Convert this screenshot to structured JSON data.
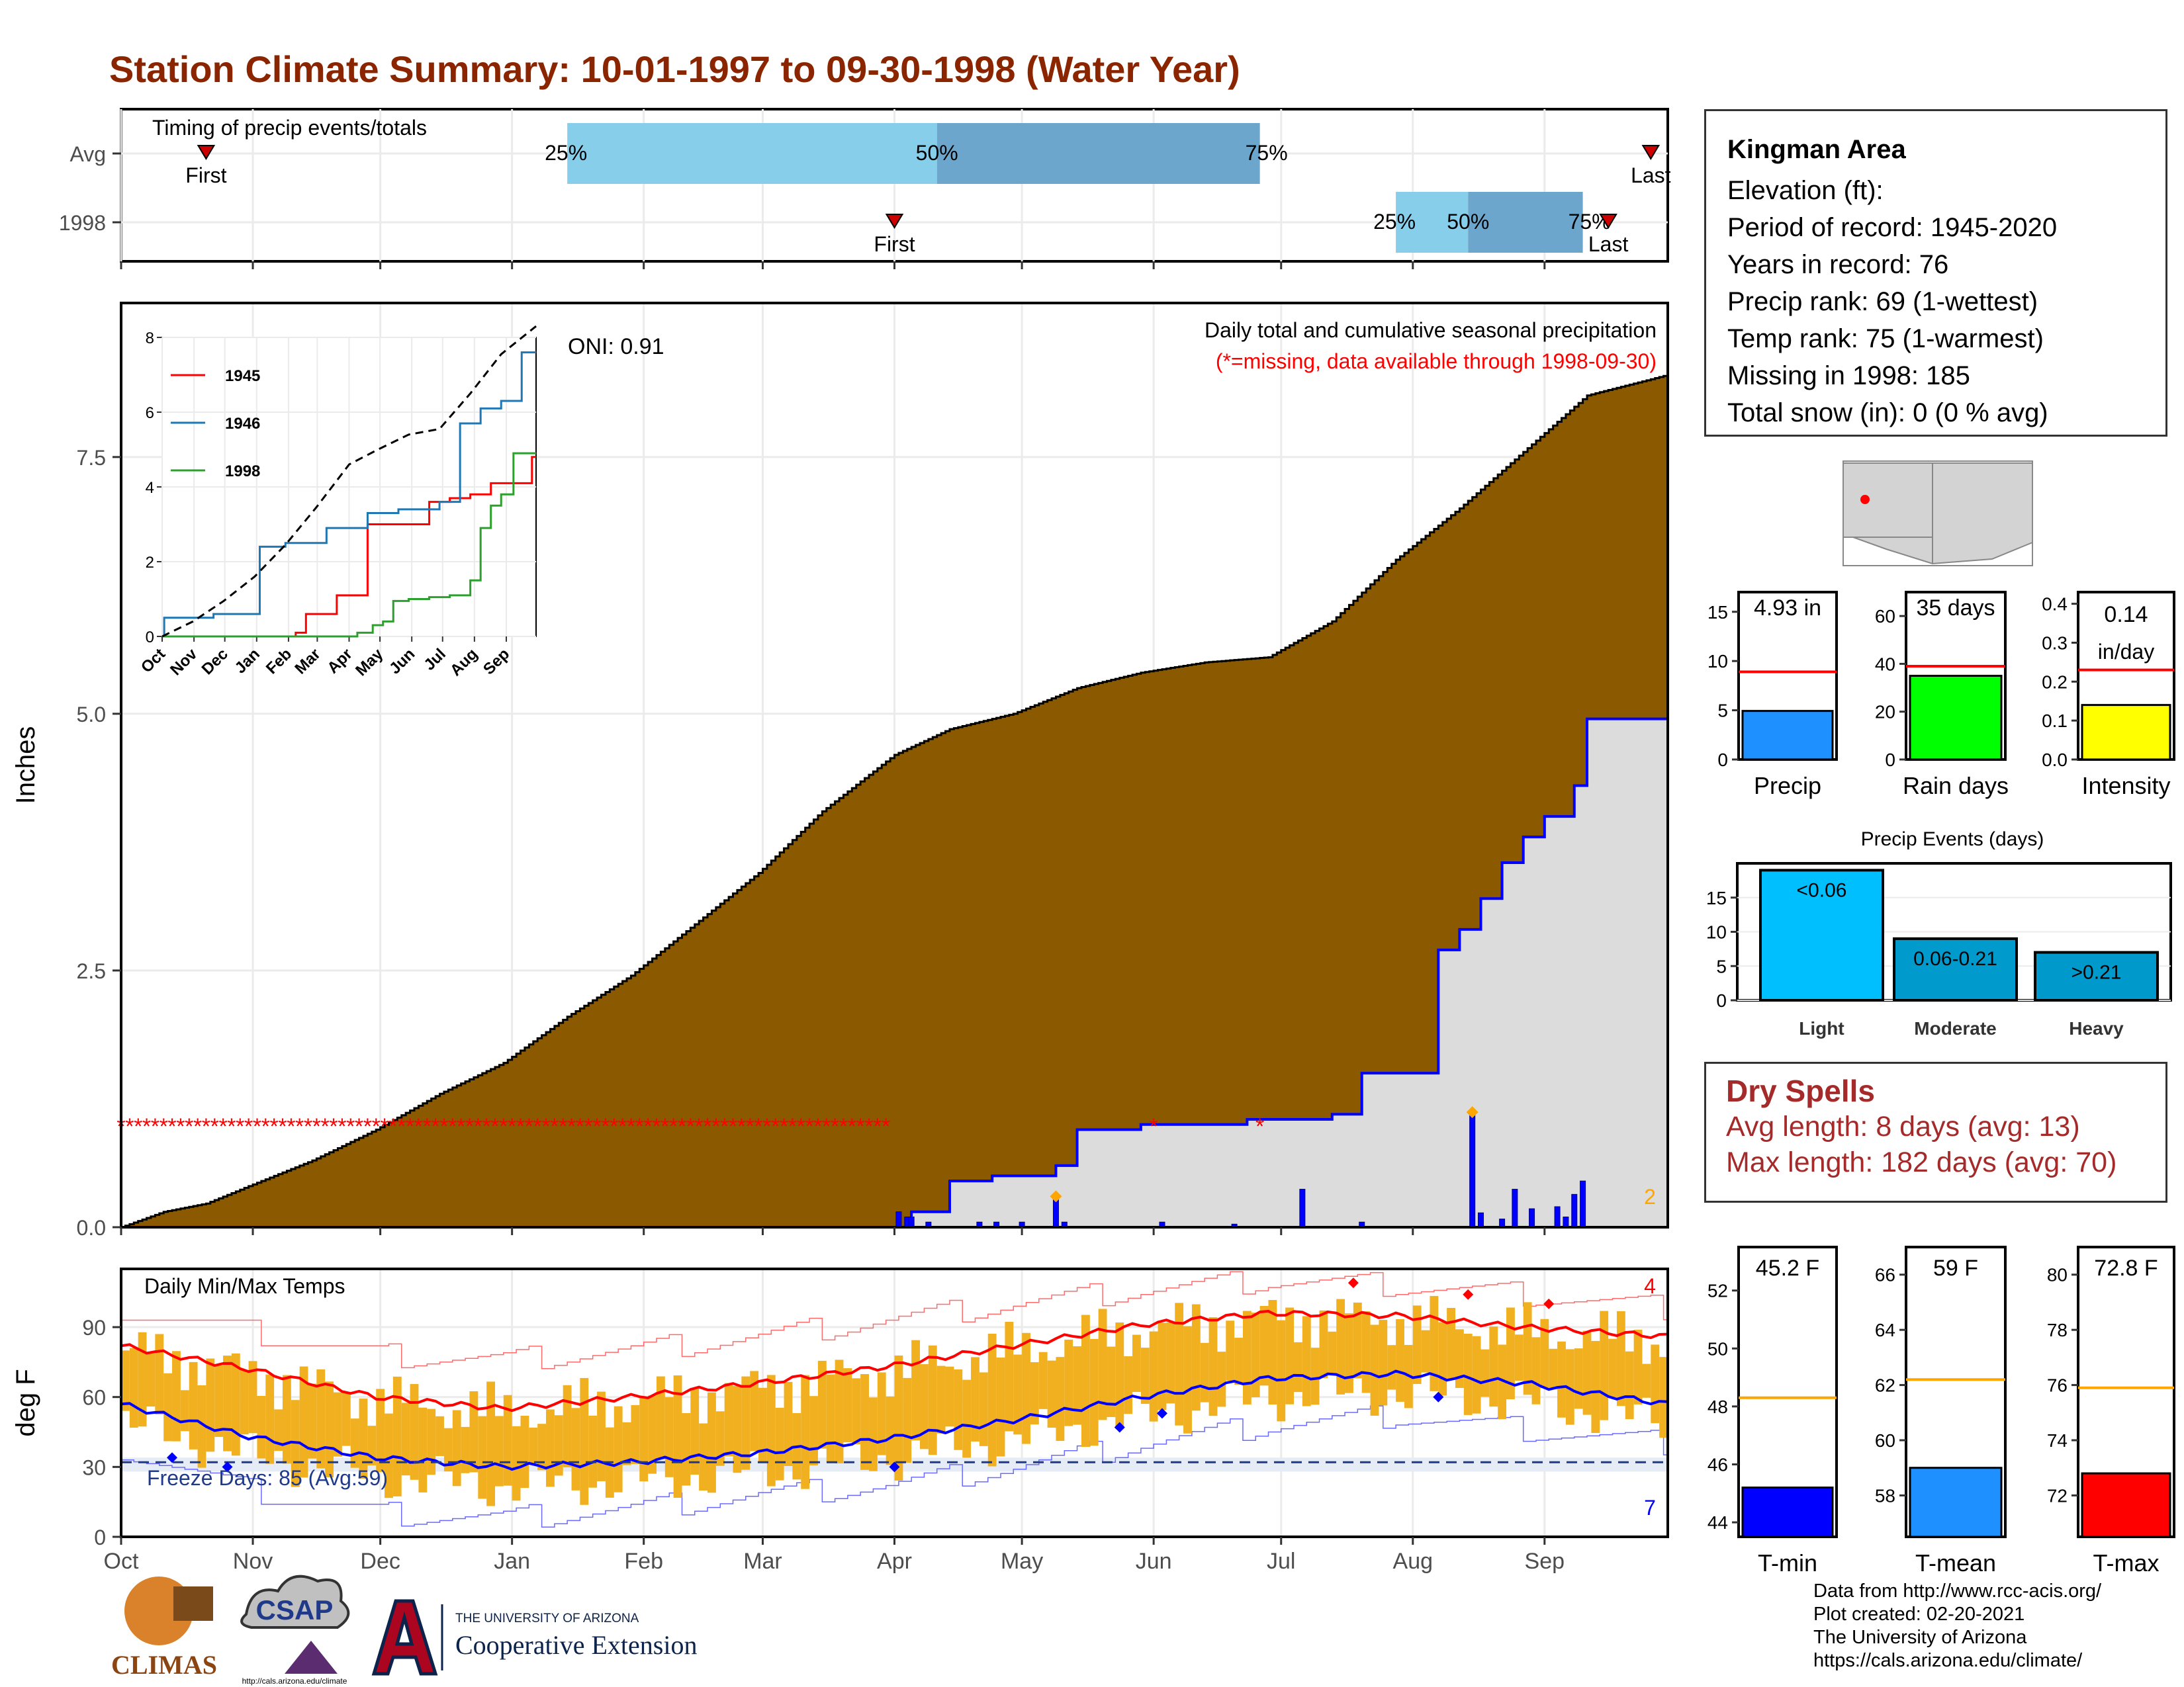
{
  "page": {
    "title": "Station Climate Summary: 10-01-1997 to 09-30-1998 (Water Year)"
  },
  "station": {
    "name": "Kingman Area",
    "lines": [
      "Elevation (ft):",
      "Period of record: 1945-2020",
      "Years in record: 76",
      "Precip rank: 69 (1-wettest)",
      "Temp rank: 75 (1-warmest)",
      "Missing in 1998: 185",
      "Total snow (in): 0 (0 % avg)"
    ]
  },
  "dry_spells": {
    "heading": "Dry Spells",
    "avg": "Avg length: 8 days (avg: 13)",
    "max": "Max length: 182 days (avg: 70)"
  },
  "footer": {
    "lines": [
      "Data from http://www.rcc-acis.org/",
      "Plot created: 02-20-2021",
      "The University of Arizona",
      "https://cals.arizona.edu/climate/"
    ]
  },
  "logos": {
    "climas": "CLIMAS",
    "csap": "CSAP",
    "csap_url": "http://cals.arizona.edu/climate",
    "ua_top": "THE UNIVERSITY OF ARIZONA",
    "ua_bottom": "Cooperative Extension"
  },
  "colors": {
    "title": "#8b2500",
    "cumulative_avg": "#8b5a00",
    "cumulative_1998": "#0000ff",
    "missing": "#ff0000",
    "temp_bars": "#f0b020",
    "tmin": "#0000ff",
    "tmax": "#ff0000",
    "precip_bar": "#1e90ff",
    "raindays_bar": "#00ff00",
    "intensity_bar": "#ffff00",
    "events_light": "#00bfff",
    "events_moderate": "#009acd",
    "events_heavy": "#0099cc",
    "tmean_bar": "#1e90ff"
  },
  "chart_data": [
    {
      "id": "timing",
      "type": "timeline",
      "label": "Timing of precip events/totals",
      "x_months": [
        "Oct",
        "Nov",
        "Dec",
        "Jan",
        "Feb",
        "Mar",
        "Apr",
        "May",
        "Jun",
        "Jul",
        "Aug",
        "Sep"
      ],
      "rows": [
        {
          "name": "Avg",
          "first_day": 20,
          "last_day": 360,
          "p25": 105,
          "p50": 192,
          "p75": 268,
          "labels": {
            "first": "First",
            "last": "Last",
            "p25": "25%",
            "p50": "50%",
            "p75": "75%"
          }
        },
        {
          "name": "1998",
          "first_day": 182,
          "last_day": 350,
          "p25": 300,
          "p50": 317,
          "p75": 344,
          "labels": {
            "first": "First",
            "last": "Last",
            "p25": "25%",
            "p50": "50%",
            "p75": "75%"
          }
        }
      ]
    },
    {
      "id": "cumulative",
      "type": "area",
      "annotation_oni": "ONI: 0.91",
      "annotation_title": "Daily total and cumulative seasonal precipitation",
      "annotation_missing": "(*=missing, data available through 1998-09-30)",
      "ylabel": "Inches",
      "ylim": [
        0,
        9.0
      ],
      "yticks": [
        0.0,
        2.5,
        5.0,
        7.5
      ],
      "ytick_labels": [
        "0.0",
        "2.5",
        "5.0",
        "7.5"
      ],
      "x_months": [
        "Oct",
        "Nov",
        "Dec",
        "Jan",
        "Feb",
        "Mar",
        "Apr",
        "May",
        "Jun",
        "Jul",
        "Aug",
        "Sep"
      ],
      "avg_cumulative": {
        "days": [
          0,
          10,
          20,
          30,
          45,
          60,
          75,
          90,
          105,
          120,
          135,
          150,
          165,
          182,
          195,
          210,
          225,
          240,
          255,
          270,
          285,
          300,
          315,
          330,
          345,
          364
        ],
        "values": [
          0.0,
          0.15,
          0.23,
          0.4,
          0.65,
          0.95,
          1.3,
          1.6,
          2.05,
          2.45,
          2.95,
          3.45,
          4.05,
          4.6,
          4.85,
          5.0,
          5.25,
          5.4,
          5.5,
          5.55,
          5.9,
          6.5,
          7.0,
          7.55,
          8.1,
          8.3
        ]
      },
      "cumulative_1998": {
        "days": [
          182,
          186,
          195,
          205,
          220,
          225,
          240,
          250,
          265,
          270,
          285,
          292,
          300,
          310,
          315,
          320,
          325,
          330,
          335,
          342,
          345,
          364
        ],
        "values": [
          0.0,
          0.15,
          0.45,
          0.5,
          0.6,
          0.95,
          1.0,
          1.0,
          1.05,
          1.05,
          1.1,
          1.5,
          1.5,
          2.7,
          2.9,
          3.2,
          3.55,
          3.8,
          4.0,
          4.3,
          4.95,
          4.95
        ]
      },
      "daily_1998": {
        "days": [
          183,
          185,
          186,
          190,
          202,
          206,
          212,
          220,
          222,
          245,
          262,
          278,
          292,
          318,
          320,
          325,
          328,
          332,
          338,
          340,
          342,
          344
        ],
        "values": [
          0.15,
          0.1,
          0.1,
          0.05,
          0.05,
          0.05,
          0.05,
          0.3,
          0.05,
          0.05,
          0.03,
          0.37,
          0.05,
          1.1,
          0.14,
          0.08,
          0.37,
          0.18,
          0.2,
          0.1,
          0.32,
          0.45
        ]
      },
      "missing_days": {
        "from": 0,
        "to": 181,
        "y": 1.0
      },
      "corner_label": "2",
      "inset": {
        "ylim": [
          0,
          8
        ],
        "yticks": [
          0,
          2,
          4,
          6,
          8
        ],
        "x_months": [
          "Oct",
          "Nov",
          "Dec",
          "Jan",
          "Feb",
          "Mar",
          "Apr",
          "May",
          "Jun",
          "Jul",
          "Aug",
          "Sep"
        ],
        "series": [
          {
            "name": "1945",
            "days": [
              0,
              30,
              60,
              90,
              110,
              130,
              140,
              170,
              200,
              260,
              280,
              300,
              320,
              360,
              364
            ],
            "values": [
              0.0,
              0.0,
              0.0,
              0.0,
              0.0,
              0.1,
              0.6,
              1.1,
              3.0,
              3.6,
              3.7,
              3.8,
              4.1,
              4.8,
              4.8
            ]
          },
          {
            "name": "1946",
            "days": [
              0,
              2,
              10,
              30,
              50,
              90,
              95,
              120,
              160,
              200,
              230,
              250,
              270,
              290,
              310,
              330,
              350,
              364
            ],
            "values": [
              0.0,
              0.5,
              0.5,
              0.5,
              0.6,
              0.6,
              2.4,
              2.5,
              2.9,
              3.3,
              3.4,
              3.4,
              3.6,
              5.7,
              6.1,
              6.3,
              7.6,
              7.6
            ]
          },
          {
            "name": "1998",
            "days": [
              0,
              182,
              190,
              205,
              215,
              225,
              240,
              260,
              280,
              300,
              310,
              320,
              330,
              342,
              364
            ],
            "values": [
              0.0,
              0.0,
              0.1,
              0.3,
              0.4,
              0.95,
              1.0,
              1.05,
              1.1,
              1.5,
              2.9,
              3.5,
              3.8,
              4.9,
              4.9
            ]
          }
        ],
        "avg": {
          "days": [
            0,
            30,
            60,
            90,
            120,
            150,
            182,
            210,
            240,
            270,
            300,
            330,
            364
          ],
          "values": [
            0.0,
            0.4,
            0.95,
            1.6,
            2.45,
            3.45,
            4.6,
            5.0,
            5.4,
            5.55,
            6.5,
            7.55,
            8.3
          ]
        }
      }
    },
    {
      "id": "temps",
      "type": "bar",
      "label": "Daily Min/Max Temps",
      "ylabel": "deg F",
      "ylim": [
        0,
        115
      ],
      "yticks": [
        0,
        30,
        60,
        90
      ],
      "x_months": [
        "Oct",
        "Nov",
        "Dec",
        "Jan",
        "Feb",
        "Mar",
        "Apr",
        "May",
        "Jun",
        "Jul",
        "Aug",
        "Sep"
      ],
      "freeze_label": "Freeze Days: 85 (Avg:59)",
      "freeze_line": 32,
      "corner_top": "4",
      "corner_bottom": "7",
      "normal_max": {
        "days": [
          0,
          30,
          60,
          90,
          120,
          150,
          180,
          210,
          240,
          270,
          300,
          330,
          364
        ],
        "values": [
          82,
          72,
          60,
          55,
          60,
          66,
          73,
          82,
          91,
          96,
          95,
          90,
          86
        ]
      },
      "normal_min": {
        "days": [
          0,
          30,
          60,
          90,
          120,
          150,
          180,
          210,
          240,
          270,
          300,
          330,
          364
        ],
        "values": [
          57,
          43,
          34,
          30,
          32,
          36,
          42,
          50,
          60,
          68,
          70,
          66,
          57
        ]
      },
      "record_max": {
        "days": [
          0,
          30,
          60,
          90,
          120,
          150,
          180,
          210,
          240,
          270,
          300,
          330,
          364
        ],
        "values": [
          98,
          88,
          78,
          76,
          80,
          86,
          93,
          100,
          106,
          110,
          108,
          104,
          98
        ]
      },
      "record_min": {
        "days": [
          0,
          30,
          60,
          90,
          120,
          150,
          180,
          210,
          240,
          270,
          300,
          330,
          364
        ],
        "values": [
          38,
          20,
          10,
          8,
          12,
          18,
          22,
          30,
          40,
          48,
          52,
          46,
          40
        ]
      }
    },
    {
      "id": "precip_summary",
      "type": "bar",
      "panels": [
        {
          "name": "Precip",
          "value": 4.93,
          "label": "4.93 in",
          "ref": 8.9,
          "ylim": [
            0,
            17
          ],
          "yticks": [
            0,
            5,
            10,
            15
          ]
        },
        {
          "name": "Rain days",
          "value": 35,
          "label": "35 days",
          "ref": 39,
          "ylim": [
            0,
            70
          ],
          "yticks": [
            0,
            20,
            40,
            60
          ]
        },
        {
          "name": "Intensity",
          "value": 0.14,
          "label": "0.14",
          "label2": "in/day",
          "ref": 0.23,
          "ylim": [
            0,
            0.43
          ],
          "yticks": [
            0.0,
            0.1,
            0.2,
            0.3,
            0.4
          ]
        }
      ]
    },
    {
      "id": "precip_events",
      "type": "bar",
      "title": "Precip Events (days)",
      "categories": [
        "Light",
        "Moderate",
        "Heavy"
      ],
      "bar_labels": [
        "<0.06",
        "0.06-0.21",
        ">0.21"
      ],
      "values": [
        19,
        9,
        7
      ],
      "ylim": [
        0,
        20
      ],
      "yticks": [
        0,
        5,
        10,
        15
      ]
    },
    {
      "id": "temp_summary",
      "type": "bar",
      "panels": [
        {
          "name": "T-min",
          "value": 45.2,
          "label": "45.2 F",
          "ref": 48.3,
          "ylim": [
            43.5,
            53.5
          ],
          "yticks": [
            44,
            46,
            48,
            50,
            52
          ]
        },
        {
          "name": "T-mean",
          "value": 59,
          "label": "59 F",
          "ref": 62.2,
          "ylim": [
            56.5,
            67
          ],
          "yticks": [
            58,
            60,
            62,
            64,
            66
          ]
        },
        {
          "name": "T-max",
          "value": 72.8,
          "label": "72.8 F",
          "ref": 75.9,
          "ylim": [
            70.5,
            81
          ],
          "yticks": [
            72,
            74,
            76,
            78,
            80
          ]
        }
      ]
    }
  ]
}
